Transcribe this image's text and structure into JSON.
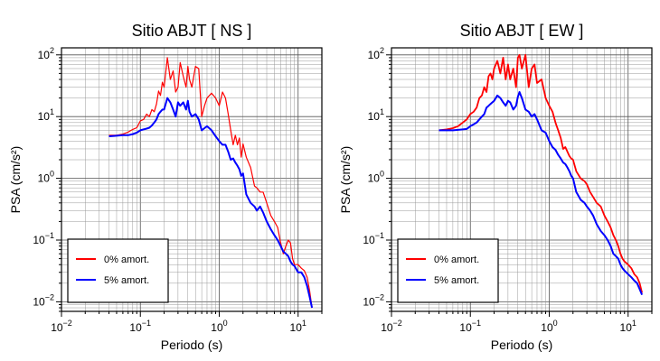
{
  "chart_data": [
    {
      "type": "line",
      "title": "Sitio ABJT [ NS ]",
      "xlabel": "Periodo (s)",
      "ylabel": "PSA (cm/s²)",
      "xscale": "log",
      "yscale": "log",
      "xlim": [
        0.01,
        20
      ],
      "ylim": [
        0.007,
        130
      ],
      "grid": true,
      "legend_position": "bottom-left",
      "x_ticks": [
        {
          "value": 0.01,
          "base": "10",
          "exp": "−2"
        },
        {
          "value": 0.1,
          "base": "10",
          "exp": "−1"
        },
        {
          "value": 1,
          "base": "10",
          "exp": "0"
        },
        {
          "value": 10,
          "base": "10",
          "exp": "1"
        }
      ],
      "y_ticks": [
        {
          "value": 0.01,
          "base": "10",
          "exp": "−2"
        },
        {
          "value": 0.1,
          "base": "10",
          "exp": "−1"
        },
        {
          "value": 1,
          "base": "10",
          "exp": "0"
        },
        {
          "value": 10,
          "base": "10",
          "exp": "1"
        },
        {
          "value": 100,
          "base": "10",
          "exp": "2"
        }
      ],
      "series": [
        {
          "name": "0% amort.",
          "color": "#ff0000",
          "x": [
            0.04,
            0.05,
            0.06,
            0.07,
            0.08,
            0.09,
            0.1,
            0.11,
            0.12,
            0.13,
            0.14,
            0.15,
            0.16,
            0.17,
            0.18,
            0.19,
            0.2,
            0.22,
            0.24,
            0.26,
            0.28,
            0.3,
            0.32,
            0.35,
            0.38,
            0.4,
            0.42,
            0.45,
            0.5,
            0.55,
            0.6,
            0.65,
            0.7,
            0.8,
            0.9,
            1.0,
            1.1,
            1.2,
            1.3,
            1.4,
            1.5,
            1.6,
            1.7,
            1.8,
            1.9,
            2.0,
            2.2,
            2.5,
            2.8,
            3.0,
            3.3,
            3.6,
            4.0,
            4.5,
            5.0,
            5.5,
            6.0,
            6.5,
            7.0,
            7.5,
            8.0,
            8.5,
            9.0,
            10,
            11,
            12,
            13,
            14,
            15
          ],
          "y": [
            5,
            5,
            5.2,
            5.6,
            6.2,
            6.6,
            8.5,
            9.0,
            11,
            10,
            13,
            12,
            16,
            26,
            22,
            36,
            30,
            90,
            40,
            55,
            25,
            30,
            75,
            45,
            30,
            65,
            40,
            30,
            65,
            60,
            10,
            15,
            20,
            24,
            20,
            15,
            25,
            20,
            11,
            6,
            3.5,
            5,
            3.5,
            4.5,
            2.2,
            3.6,
            2.2,
            1.5,
            0.75,
            0.7,
            0.6,
            0.6,
            0.4,
            0.25,
            0.2,
            0.16,
            0.09,
            0.06,
            0.08,
            0.1,
            0.09,
            0.05,
            0.04,
            0.04,
            0.035,
            0.032,
            0.025,
            0.015,
            0.008
          ]
        },
        {
          "name": "5% amort.",
          "color": "#0000ff",
          "x": [
            0.04,
            0.05,
            0.06,
            0.07,
            0.08,
            0.09,
            0.1,
            0.11,
            0.12,
            0.13,
            0.14,
            0.15,
            0.16,
            0.17,
            0.18,
            0.19,
            0.2,
            0.22,
            0.24,
            0.26,
            0.28,
            0.3,
            0.32,
            0.35,
            0.38,
            0.4,
            0.42,
            0.45,
            0.5,
            0.55,
            0.6,
            0.65,
            0.7,
            0.8,
            0.9,
            1.0,
            1.1,
            1.2,
            1.3,
            1.4,
            1.5,
            1.6,
            1.7,
            1.8,
            1.9,
            2.0,
            2.2,
            2.5,
            2.8,
            3.0,
            3.3,
            3.6,
            4.0,
            4.5,
            5.0,
            5.5,
            6.0,
            6.5,
            7.0,
            7.5,
            8.0,
            8.5,
            9.0,
            10,
            11,
            12,
            13,
            14,
            15
          ],
          "y": [
            4.8,
            4.9,
            5,
            5,
            5.2,
            5.5,
            6,
            6.2,
            6.4,
            6.6,
            7.2,
            8,
            9,
            11,
            12,
            13,
            13,
            20,
            17,
            13,
            10,
            17,
            15,
            17,
            13,
            18,
            12,
            10,
            11,
            9,
            6,
            6.5,
            7,
            6,
            4.8,
            4,
            3.5,
            3.5,
            2.7,
            2,
            2.1,
            1.8,
            1.6,
            1.4,
            1.1,
            1.2,
            0.55,
            0.4,
            0.35,
            0.3,
            0.35,
            0.28,
            0.2,
            0.15,
            0.12,
            0.1,
            0.08,
            0.065,
            0.06,
            0.055,
            0.045,
            0.04,
            0.038,
            0.03,
            0.03,
            0.025,
            0.018,
            0.012,
            0.008
          ]
        }
      ]
    },
    {
      "type": "line",
      "title": "Sitio ABJT [ EW ]",
      "xlabel": "Periodo (s)",
      "ylabel": "PSA (cm/s²)",
      "xscale": "log",
      "yscale": "log",
      "xlim": [
        0.01,
        20
      ],
      "ylim": [
        0.007,
        130
      ],
      "grid": true,
      "legend_position": "bottom-left",
      "x_ticks": [
        {
          "value": 0.01,
          "base": "10",
          "exp": "−2"
        },
        {
          "value": 0.1,
          "base": "10",
          "exp": "−1"
        },
        {
          "value": 1,
          "base": "10",
          "exp": "0"
        },
        {
          "value": 10,
          "base": "10",
          "exp": "1"
        }
      ],
      "y_ticks": [
        {
          "value": 0.01,
          "base": "10",
          "exp": "−2"
        },
        {
          "value": 0.1,
          "base": "10",
          "exp": "−1"
        },
        {
          "value": 1,
          "base": "10",
          "exp": "0"
        },
        {
          "value": 10,
          "base": "10",
          "exp": "1"
        },
        {
          "value": 100,
          "base": "10",
          "exp": "2"
        }
      ],
      "series": [
        {
          "name": "0% amort.",
          "color": "#ff0000",
          "x": [
            0.04,
            0.05,
            0.06,
            0.07,
            0.08,
            0.09,
            0.1,
            0.11,
            0.12,
            0.13,
            0.14,
            0.15,
            0.16,
            0.17,
            0.18,
            0.19,
            0.2,
            0.22,
            0.24,
            0.26,
            0.28,
            0.3,
            0.32,
            0.35,
            0.38,
            0.4,
            0.42,
            0.45,
            0.5,
            0.55,
            0.6,
            0.65,
            0.7,
            0.8,
            0.9,
            1.0,
            1.1,
            1.2,
            1.3,
            1.4,
            1.5,
            1.6,
            1.7,
            1.8,
            1.9,
            2.0,
            2.2,
            2.5,
            2.8,
            3.0,
            3.3,
            3.6,
            4.0,
            4.5,
            5.0,
            5.5,
            6.0,
            6.5,
            7.0,
            7.5,
            8.0,
            8.5,
            9.0,
            10,
            11,
            12,
            13,
            14,
            15
          ],
          "y": [
            6,
            6.2,
            6.5,
            7,
            8,
            9,
            11,
            12,
            14,
            20,
            22,
            30,
            25,
            45,
            50,
            40,
            60,
            80,
            50,
            90,
            40,
            70,
            40,
            60,
            30,
            90,
            100,
            60,
            100,
            30,
            60,
            70,
            35,
            40,
            20,
            15,
            12,
            8,
            6,
            4.5,
            3,
            3.2,
            2.7,
            2.3,
            2.1,
            2,
            1.3,
            1,
            0.9,
            0.8,
            0.6,
            0.5,
            0.4,
            0.35,
            0.25,
            0.2,
            0.16,
            0.12,
            0.1,
            0.08,
            0.06,
            0.05,
            0.045,
            0.04,
            0.035,
            0.028,
            0.025,
            0.02,
            0.014
          ]
        },
        {
          "name": "5% amort.",
          "color": "#0000ff",
          "x": [
            0.04,
            0.05,
            0.06,
            0.07,
            0.08,
            0.09,
            0.1,
            0.11,
            0.12,
            0.13,
            0.14,
            0.15,
            0.16,
            0.17,
            0.18,
            0.19,
            0.2,
            0.22,
            0.24,
            0.26,
            0.28,
            0.3,
            0.32,
            0.35,
            0.38,
            0.4,
            0.42,
            0.45,
            0.5,
            0.55,
            0.6,
            0.65,
            0.7,
            0.8,
            0.9,
            1.0,
            1.1,
            1.2,
            1.3,
            1.4,
            1.5,
            1.6,
            1.7,
            1.8,
            1.9,
            2.0,
            2.2,
            2.5,
            2.8,
            3.0,
            3.3,
            3.6,
            4.0,
            4.5,
            5.0,
            5.5,
            6.0,
            6.5,
            7.0,
            7.5,
            8.0,
            8.5,
            9.0,
            10,
            11,
            12,
            13,
            14,
            15
          ],
          "y": [
            6,
            6,
            6,
            6.1,
            6.2,
            6.3,
            7,
            7.5,
            8,
            9,
            10,
            11,
            14,
            15,
            16,
            17,
            18,
            22,
            20,
            17,
            15,
            18,
            17,
            13,
            15,
            21,
            25,
            20,
            13,
            12,
            10,
            11,
            9,
            6,
            5.5,
            4,
            3.2,
            2.9,
            2.4,
            2.1,
            1.8,
            1.7,
            1.5,
            1.3,
            1.1,
            1.0,
            0.6,
            0.45,
            0.4,
            0.35,
            0.3,
            0.25,
            0.18,
            0.14,
            0.12,
            0.1,
            0.08,
            0.06,
            0.055,
            0.05,
            0.04,
            0.035,
            0.032,
            0.028,
            0.025,
            0.022,
            0.02,
            0.016,
            0.013
          ]
        }
      ]
    }
  ]
}
